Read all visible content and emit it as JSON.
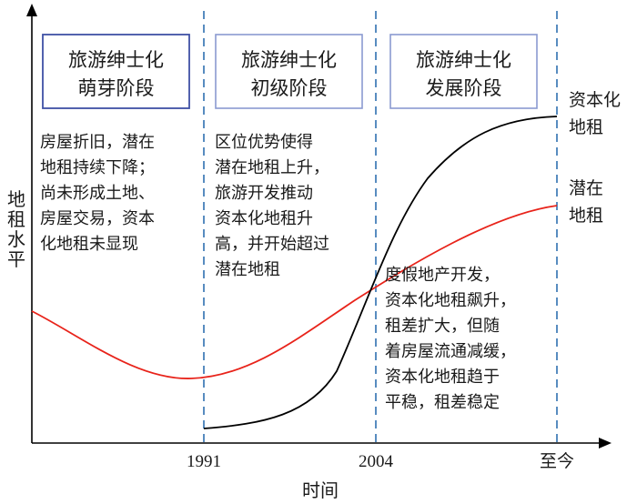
{
  "axes": {
    "y_label": "地租水平",
    "x_label": "时间",
    "ticks": [
      "1991",
      "2004",
      "至今"
    ]
  },
  "stages": [
    {
      "line1": "旅游绅士化",
      "line2": "萌芽阶段"
    },
    {
      "line1": "旅游绅士化",
      "line2": "初级阶段"
    },
    {
      "line1": "旅游绅士化",
      "line2": "发展阶段"
    }
  ],
  "descriptions": {
    "stage1": [
      "房屋折旧，潜在",
      "地租持续下降；",
      "尚未形成土地、",
      "房屋交易，资本",
      "化地租未显现"
    ],
    "stage2": [
      "区位优势使得",
      "潜在地租上升，",
      "旅游开发推动",
      "资本化地租升",
      "高，并开始超过",
      "潜在地租"
    ],
    "stage3": [
      "度假地产开发，",
      "资本化地租飙升，",
      "租差扩大，但随",
      "着房屋流通减缓，",
      "资本化地租趋于",
      "平稳，租差稳定"
    ]
  },
  "curves": {
    "capitalized": {
      "label_line1": "资本化",
      "label_line2": "地租",
      "color": "#000000"
    },
    "potential": {
      "label_line1": "潜在",
      "label_line2": "地租",
      "color": "#e8231a"
    }
  }
}
